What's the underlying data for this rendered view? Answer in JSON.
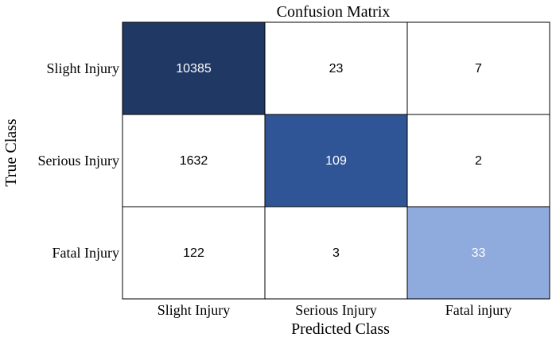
{
  "chart_data": {
    "type": "heatmap",
    "title": "Confusion Matrix",
    "xlabel": "Predicted Class",
    "ylabel": "True Class",
    "x_categories": [
      "Slight Injury",
      "Serious Injury",
      "Fatal injury"
    ],
    "y_categories": [
      "Slight Injury",
      "Serious Injury",
      "Fatal Injury"
    ],
    "values": [
      [
        10385,
        23,
        7
      ],
      [
        1632,
        109,
        2
      ],
      [
        122,
        3,
        33
      ]
    ],
    "cell_colors": [
      [
        "#1f3864",
        "#ffffff",
        "#ffffff"
      ],
      [
        "#ffffff",
        "#2f5597",
        "#ffffff"
      ],
      [
        "#ffffff",
        "#ffffff",
        "#8faadc"
      ]
    ],
    "text_colors": [
      [
        "#ffffff",
        "#000000",
        "#000000"
      ],
      [
        "#000000",
        "#ffffff",
        "#000000"
      ],
      [
        "#000000",
        "#000000",
        "#ffffff"
      ]
    ],
    "grid": true
  }
}
